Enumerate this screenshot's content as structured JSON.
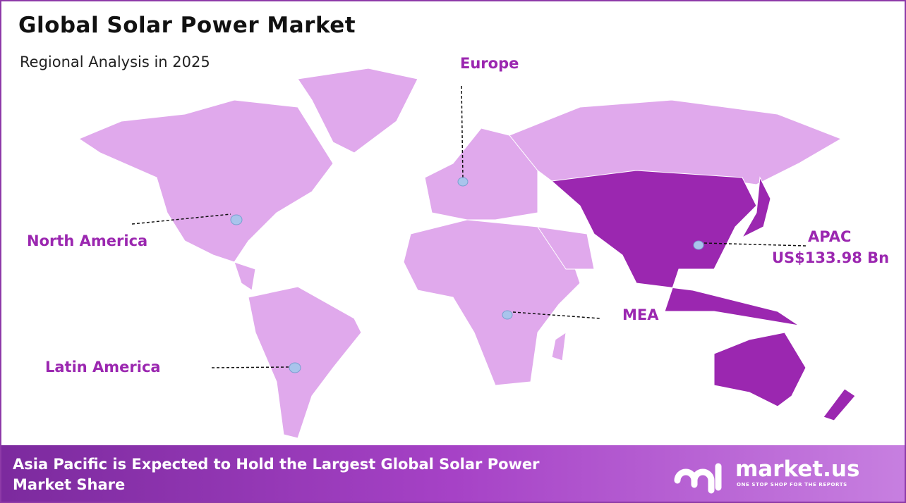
{
  "header": {
    "title": "Global Solar Power Market",
    "subtitle": "Regional Analysis in 2025"
  },
  "regions": [
    {
      "label": "Europe"
    },
    {
      "label": "North America"
    },
    {
      "label": "Latin America"
    },
    {
      "label": "MEA"
    },
    {
      "label": "APAC",
      "value": "US$133.98 Bn"
    }
  ],
  "footer": {
    "text": "Asia Pacific is Expected to Hold the Largest Global Solar Power Market Share",
    "logo": "market.us",
    "tagline": "ONE STOP SHOP FOR THE REPORTS"
  }
}
